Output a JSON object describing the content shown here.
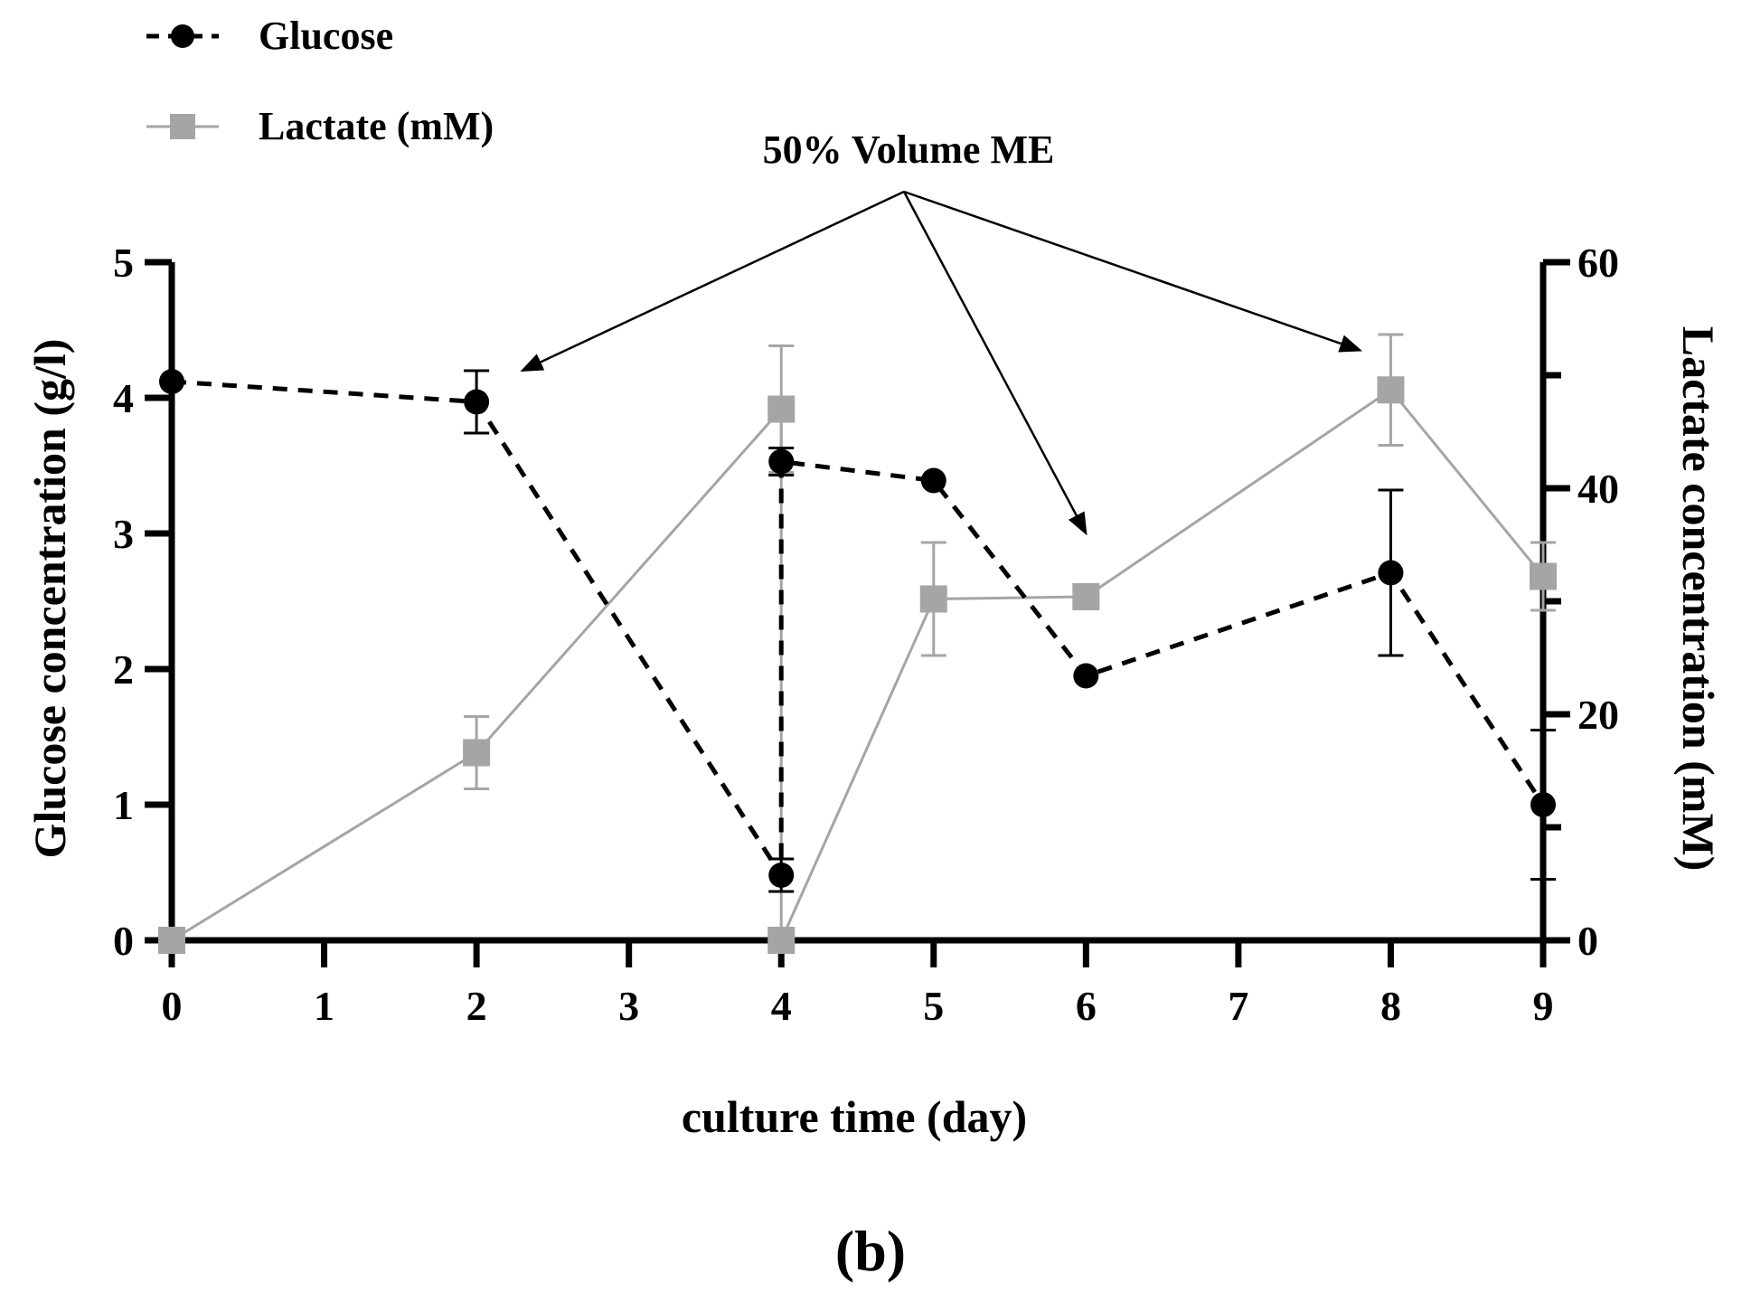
{
  "chart_data": {
    "type": "line",
    "xlabel": "culture time (day)",
    "ylabel_left": "Glucose concentration (g/l)",
    "ylabel_right": "Lactate concentration (mM)",
    "x_ticks": [
      0,
      1,
      2,
      3,
      4,
      5,
      6,
      7,
      8,
      9
    ],
    "xlim": [
      0,
      9
    ],
    "ylim_left": [
      0,
      5
    ],
    "ylim_right": [
      0,
      60
    ],
    "y_ticks_left": [
      0,
      1,
      2,
      3,
      4,
      5
    ],
    "y_ticks_right": [
      0,
      20,
      40,
      60
    ],
    "caption": "(b)",
    "annotation": {
      "text": "50% Volume ME",
      "targets": [
        {
          "x": 2.3,
          "y_left": 4.2
        },
        {
          "x": 6.0,
          "y_left": 3.0
        },
        {
          "x": 7.8,
          "y_left": 4.35
        }
      ]
    },
    "legend_position": "top-left",
    "series": [
      {
        "name": "Glucose",
        "axis": "left",
        "style": "dashed-circle",
        "color": "#000000",
        "points": [
          {
            "x": 0,
            "y": 4.12,
            "err": 0
          },
          {
            "x": 2,
            "y": 3.97,
            "err": 0.23
          },
          {
            "x": 4,
            "y": 0.48,
            "err": 0.12
          },
          {
            "x": 4,
            "y": 3.53,
            "err": 0.1
          },
          {
            "x": 5,
            "y": 3.39,
            "err": 0
          },
          {
            "x": 6,
            "y": 1.95,
            "err": 0
          },
          {
            "x": 8,
            "y": 2.71,
            "err": 0.61
          },
          {
            "x": 9,
            "y": 1.0,
            "err": 0.55
          }
        ]
      },
      {
        "name": "Lactate (mM)",
        "axis": "right",
        "style": "solid-square",
        "color": "#a5a5a7",
        "points": [
          {
            "x": 0,
            "y": 0,
            "err": 0
          },
          {
            "x": 2,
            "y": 16.6,
            "err": 3.2
          },
          {
            "x": 4,
            "y": 47.0,
            "err": 5.6
          },
          {
            "x": 4,
            "y": 0,
            "err": 0
          },
          {
            "x": 5,
            "y": 30.2,
            "err": 5.0
          },
          {
            "x": 6,
            "y": 30.4,
            "err": 0
          },
          {
            "x": 8,
            "y": 48.7,
            "err": 4.9
          },
          {
            "x": 9,
            "y": 32.2,
            "err": 3.0
          }
        ]
      }
    ]
  }
}
